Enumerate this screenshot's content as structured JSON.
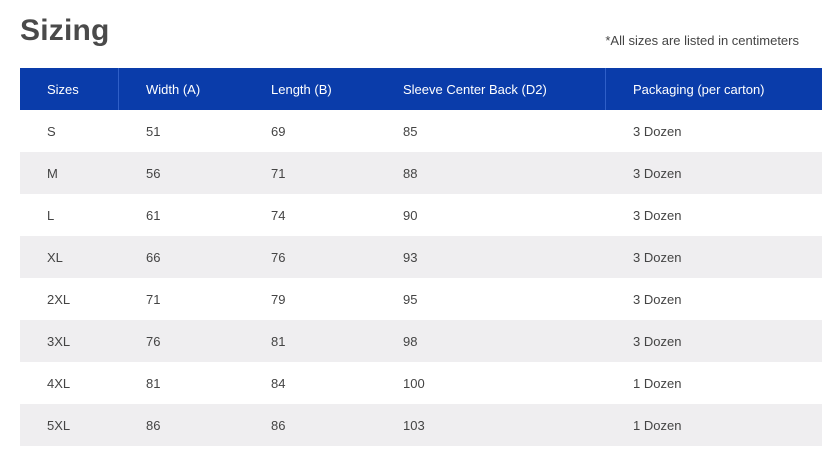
{
  "page": {
    "title": "Sizing",
    "note": "*All sizes are listed in centimeters"
  },
  "table": {
    "headers": [
      "Sizes",
      "Width (A)",
      "Length (B)",
      "Sleeve Center Back (D2)",
      "Packaging (per carton)"
    ],
    "rows": [
      [
        "S",
        "51",
        "69",
        "85",
        "3 Dozen"
      ],
      [
        "M",
        "56",
        "71",
        "88",
        "3 Dozen"
      ],
      [
        "L",
        "61",
        "74",
        "90",
        "3 Dozen"
      ],
      [
        "XL",
        "66",
        "76",
        "93",
        "3 Dozen"
      ],
      [
        "2XL",
        "71",
        "79",
        "95",
        "3 Dozen"
      ],
      [
        "3XL",
        "76",
        "81",
        "98",
        "3 Dozen"
      ],
      [
        "4XL",
        "81",
        "84",
        "100",
        "1 Dozen"
      ],
      [
        "5XL",
        "86",
        "86",
        "103",
        "1 Dozen"
      ]
    ]
  },
  "colors": {
    "header_bg": "#0a3caa",
    "alt_row_bg": "#efeef0"
  }
}
